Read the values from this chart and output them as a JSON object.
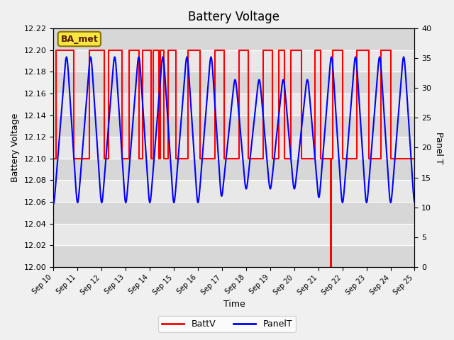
{
  "title": "Battery Voltage",
  "xlabel": "Time",
  "ylabel_left": "Battery Voltage",
  "ylabel_right": "Panel T",
  "ylim_left": [
    12.0,
    12.22
  ],
  "ylim_right": [
    0,
    40
  ],
  "yticks_left": [
    12.0,
    12.02,
    12.04,
    12.06,
    12.08,
    12.1,
    12.12,
    12.14,
    12.16,
    12.18,
    12.2,
    12.22
  ],
  "yticks_right": [
    0,
    5,
    10,
    15,
    20,
    25,
    30,
    35,
    40
  ],
  "background_color": "#f0f0f0",
  "plot_bg_color": "#e8e8e8",
  "band_color": "#d8d8d8",
  "legend_items": [
    "BattV",
    "PanelT"
  ],
  "legend_colors": [
    "red",
    "blue"
  ],
  "watermark_text": "BA_met",
  "batt_color": "red",
  "panel_color": "blue",
  "date_labels": [
    "Sep 10",
    "Sep 11",
    "Sep 12",
    "Sep 13",
    "Sep 14",
    "Sep 15",
    "Sep 16",
    "Sep 17",
    "Sep 18",
    "Sep 19",
    "Sep 20",
    "Sep 21",
    "Sep 22",
    "Sep 23",
    "Sep 24",
    "Sep 25"
  ],
  "num_days": 15,
  "batt_low": 12.1,
  "batt_high": 12.2,
  "batt_spike_low": 12.0,
  "panel_min": 9,
  "panel_max": 37
}
